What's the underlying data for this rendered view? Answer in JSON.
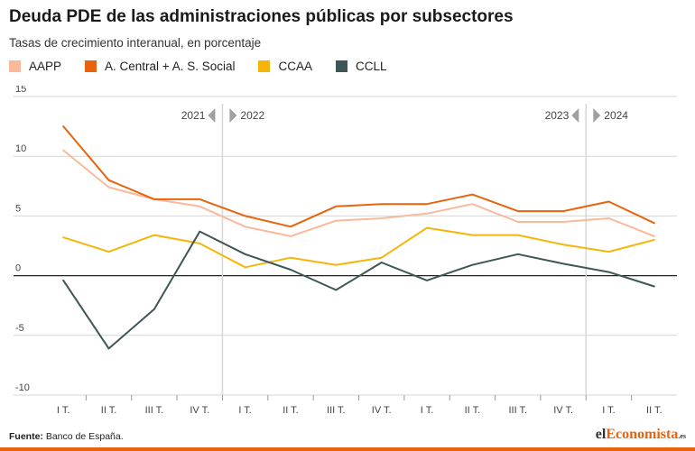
{
  "title": "Deuda PDE de las administraciones públicas por subsectores",
  "subtitle": "Tasas de crecimiento interanual, en porcentaje",
  "source_label": "Fuente:",
  "source_text": "Banco de España.",
  "brand": {
    "part1": "el",
    "part2": "Economista",
    "part3": ".es"
  },
  "colors": {
    "accent": "#e8640c",
    "axis": "#222222",
    "grid": "#d6d6d6"
  },
  "chart_data": {
    "type": "line",
    "categories": [
      "I T.",
      "II T.",
      "III T.",
      "IV T.",
      "I T.",
      "II T.",
      "III T.",
      "IV T.",
      "I T.",
      "II T.",
      "III T.",
      "IV T.",
      "I T.",
      "II T."
    ],
    "ylim": [
      -10,
      15
    ],
    "yticks": [
      15,
      10,
      5,
      0,
      -5,
      -10
    ],
    "grid": true,
    "legend_position": "top-left",
    "year_markers": [
      {
        "after_index": 3,
        "left": "2021",
        "right": "2022"
      },
      {
        "after_index": 11,
        "left": "2023",
        "right": "2024"
      }
    ],
    "series": [
      {
        "name": "AAPP",
        "color": "#f9b99a",
        "values": [
          10.5,
          7.4,
          6.4,
          5.8,
          4.1,
          3.3,
          4.6,
          4.8,
          5.2,
          6.0,
          4.5,
          4.5,
          4.8,
          3.3
        ]
      },
      {
        "name": "A. Central + A. S. Social",
        "color": "#e8640c",
        "values": [
          12.5,
          8.0,
          6.4,
          6.4,
          5.0,
          4.1,
          5.8,
          6.0,
          6.0,
          6.8,
          5.4,
          5.4,
          6.2,
          4.4
        ]
      },
      {
        "name": "CCAA",
        "color": "#f5b50a",
        "values": [
          3.2,
          2.0,
          3.4,
          2.7,
          0.7,
          1.5,
          0.9,
          1.5,
          4.0,
          3.4,
          3.4,
          2.6,
          2.0,
          3.0
        ]
      },
      {
        "name": "CCLL",
        "color": "#3e5655",
        "values": [
          -0.4,
          -6.1,
          -2.8,
          3.7,
          1.8,
          0.5,
          -1.2,
          1.1,
          -0.4,
          0.9,
          1.8,
          1.0,
          0.3,
          -0.9
        ]
      }
    ]
  }
}
